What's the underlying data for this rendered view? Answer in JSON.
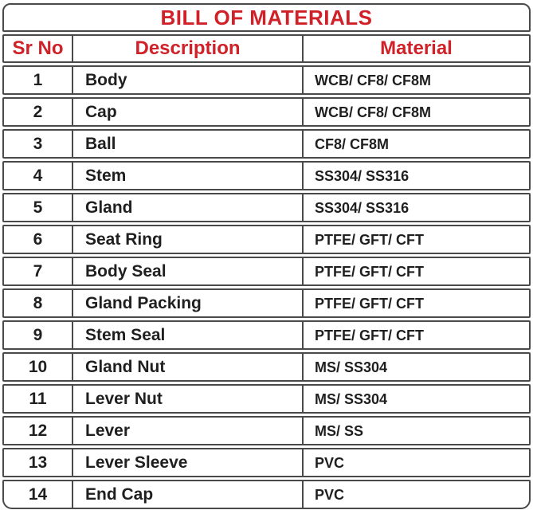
{
  "title": "BILL OF MATERIALS",
  "table": {
    "columns": [
      "Sr No",
      "Description",
      "Material"
    ],
    "rows": [
      {
        "sr": "1",
        "description": "Body",
        "material": "WCB/ CF8/ CF8M"
      },
      {
        "sr": "2",
        "description": "Cap",
        "material": "WCB/ CF8/ CF8M"
      },
      {
        "sr": "3",
        "description": "Ball",
        "material": "CF8/ CF8M"
      },
      {
        "sr": "4",
        "description": "Stem",
        "material": "SS304/ SS316"
      },
      {
        "sr": "5",
        "description": "Gland",
        "material": "SS304/ SS316"
      },
      {
        "sr": "6",
        "description": "Seat Ring",
        "material": "PTFE/ GFT/ CFT"
      },
      {
        "sr": "7",
        "description": "Body Seal",
        "material": "PTFE/ GFT/ CFT"
      },
      {
        "sr": "8",
        "description": "Gland Packing",
        "material": "PTFE/ GFT/ CFT"
      },
      {
        "sr": "9",
        "description": "Stem Seal",
        "material": "PTFE/ GFT/ CFT"
      },
      {
        "sr": "10",
        "description": "Gland Nut",
        "material": "MS/ SS304"
      },
      {
        "sr": "11",
        "description": "Lever Nut",
        "material": "MS/ SS304"
      },
      {
        "sr": "12",
        "description": "Lever",
        "material": "MS/ SS"
      },
      {
        "sr": "13",
        "description": "Lever Sleeve",
        "material": "PVC"
      },
      {
        "sr": "14",
        "description": "End Cap",
        "material": "PVC"
      }
    ]
  },
  "colors": {
    "accent_red": "#d02028",
    "border_gray": "#4a4a4a",
    "text": "#1f1f1f"
  }
}
